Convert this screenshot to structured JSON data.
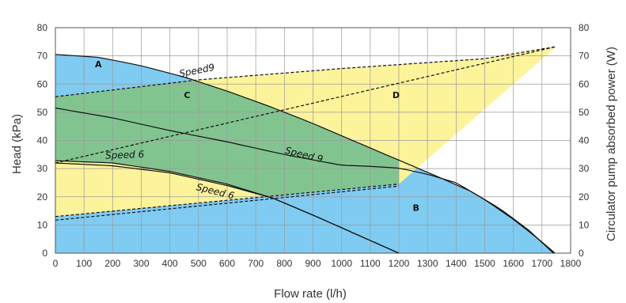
{
  "chart_data": {
    "type": "area",
    "x_label": "Flow rate (l/h)",
    "y_label_left": "Head (kPa)",
    "y_label_right": "Circulator pump absorbed power (W)",
    "x_range": [
      0,
      1800
    ],
    "y_range_left": [
      0,
      80
    ],
    "y_range_right": [
      0,
      80
    ],
    "x_ticks": [
      "0",
      "100",
      "200",
      "300",
      "400",
      "500",
      "600",
      "700",
      "800",
      "900",
      "1000",
      "1100",
      "1200",
      "1300",
      "1400",
      "1500",
      "1600",
      "1700",
      "1800"
    ],
    "y_ticks_left": [
      "0",
      "10",
      "20",
      "30",
      "40",
      "50",
      "60",
      "70",
      "80"
    ],
    "y_ticks_right": [
      "0",
      "10",
      "20",
      "30",
      "40",
      "50",
      "60",
      "70",
      "80"
    ],
    "grid": true,
    "colors": {
      "blue": "#7fcbf2",
      "yellow": "#fdf39b",
      "green": "#82c48f"
    },
    "regions": [
      {
        "label": "A",
        "color": "blue",
        "at": [
          150,
          66
        ]
      },
      {
        "label": "C",
        "color": "green",
        "at": [
          460,
          55
        ]
      },
      {
        "label": "D",
        "color": "yellow",
        "at": [
          1190,
          55
        ]
      },
      {
        "label": "B",
        "color": "blue",
        "at": [
          1260,
          15
        ]
      }
    ],
    "series": [
      {
        "name": "Speed9",
        "kind": "head",
        "style": "solid",
        "x": [
          0,
          150,
          300,
          450,
          600,
          750,
          900,
          1050,
          1200,
          1350,
          1450,
          1550,
          1650,
          1740
        ],
        "y": [
          70.5,
          69.5,
          66.5,
          62.5,
          57.5,
          52,
          46,
          39.5,
          33,
          26.5,
          22,
          16,
          8.5,
          0
        ]
      },
      {
        "name": "Speed 6",
        "kind": "head",
        "style": "solid",
        "x": [
          0,
          200,
          400,
          600,
          760,
          900,
          1000,
          1100,
          1200
        ],
        "y": [
          32.8,
          32,
          29,
          24.5,
          19.5,
          13.5,
          9,
          4.5,
          0
        ]
      },
      {
        "name": "Speed 9",
        "kind": "power",
        "style": "solid",
        "x": [
          0,
          200,
          400,
          600,
          800,
          1000,
          1100,
          1200,
          1300,
          1400,
          1500,
          1600,
          1700,
          1745
        ],
        "y": [
          51.5,
          48,
          43.5,
          39.5,
          35,
          31.2,
          30.8,
          30.2,
          28,
          25,
          19,
          12,
          4,
          0
        ]
      },
      {
        "name": "Speed 6",
        "kind": "power",
        "style": "solid",
        "x": [
          0,
          200,
          400,
          600,
          760,
          900,
          1000,
          1100,
          1200
        ],
        "y": [
          32,
          31,
          28.5,
          24,
          19.5,
          13.5,
          9,
          4.5,
          0
        ]
      },
      {
        "name": "",
        "kind": "limit",
        "style": "dashed",
        "x": [
          0,
          500,
          1000,
          1500,
          1750
        ],
        "y": [
          55.5,
          61.5,
          65.5,
          69,
          73.3
        ]
      },
      {
        "name": "",
        "kind": "limit",
        "style": "dashed",
        "x": [
          0,
          1200
        ],
        "y": [
          13,
          24.5
        ]
      },
      {
        "name": "",
        "kind": "limit",
        "style": "dashed",
        "x": [
          0,
          1200
        ],
        "y": [
          11.7,
          23.8
        ]
      },
      {
        "name": "",
        "kind": "limit",
        "style": "dashed",
        "x": [
          0,
          1750
        ],
        "y": [
          32,
          73.3
        ]
      }
    ],
    "curve_labels": [
      {
        "text": "Speed9",
        "at": [
          435,
          62.5
        ],
        "angle": -11
      },
      {
        "text": "Speed 9",
        "at": [
          800,
          35.5
        ],
        "angle": 14
      },
      {
        "text": "Speed 6",
        "at": [
          175,
          33.5
        ],
        "angle": -2
      },
      {
        "text": "Speed 6",
        "at": [
          490,
          22.5
        ],
        "angle": 14
      }
    ]
  }
}
